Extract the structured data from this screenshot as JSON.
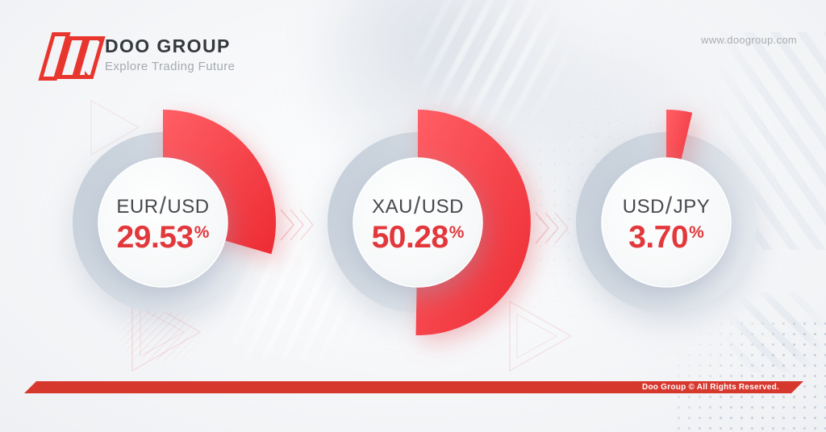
{
  "brand": {
    "name": "DOO GROUP",
    "tagline": "Explore Trading Future"
  },
  "header": {
    "website": "www.doogroup.com"
  },
  "footer": {
    "copyright": "Doo Group © All Rights Reserved."
  },
  "colors": {
    "brand_red": "#e8352d",
    "slice_red_light": "#ff5f65",
    "slice_red_dark": "#ed2b33",
    "track_gray_dark": "#c8d1db",
    "track_gray_light": "#e6eaef",
    "percent_red": "#e2383c",
    "label_gray": "#46494d",
    "footer_red": "#d7382e"
  },
  "chart_data": {
    "type": "pie",
    "subtype": "donut",
    "legend": false,
    "start_angle_deg": 0,
    "direction": "clockwise",
    "charts": [
      {
        "label": "EUR/USD",
        "value": 29.53,
        "display": "29.53",
        "unit": "%"
      },
      {
        "label": "XAU/USD",
        "value": 50.28,
        "display": "50.28",
        "unit": "%"
      },
      {
        "label": "USD/JPY",
        "value": 3.7,
        "display": "3.70",
        "unit": "%"
      }
    ]
  }
}
